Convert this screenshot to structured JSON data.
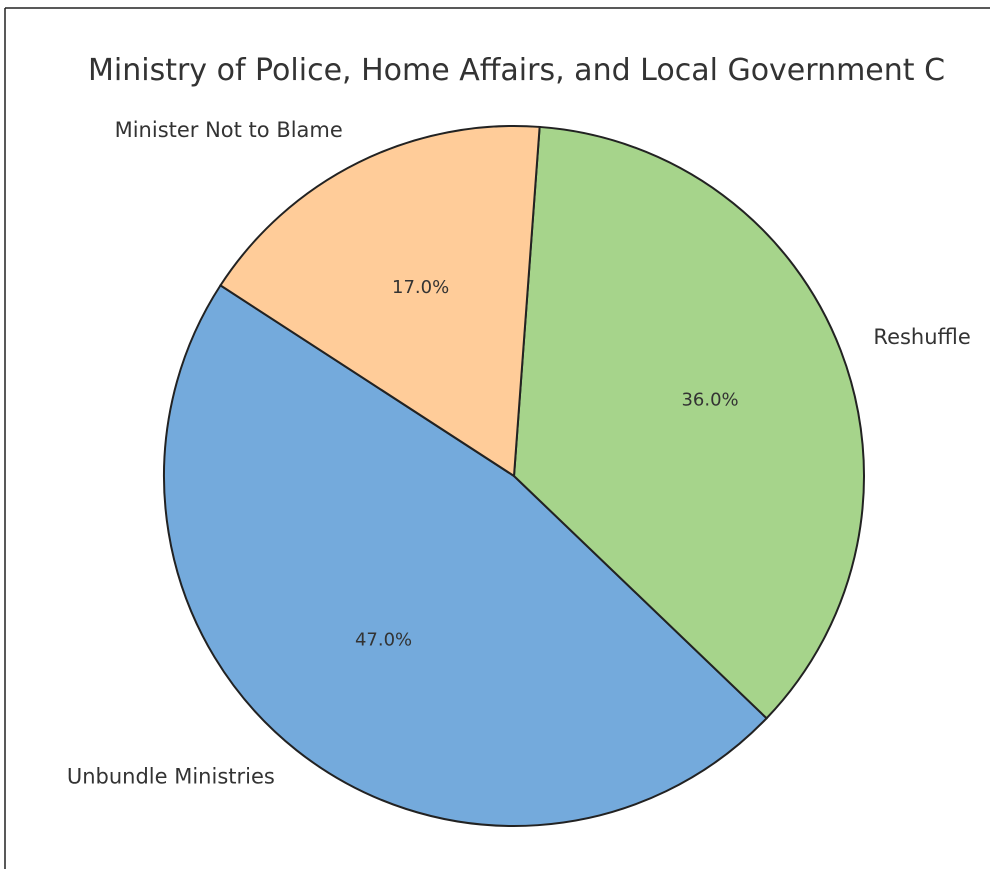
{
  "chart_data": {
    "type": "pie",
    "title": "Ministry of Police, Home Affairs, and Local Government C",
    "slices": [
      {
        "label": "Unbundle Ministries",
        "value": 47.0,
        "pct_label": "47.0%",
        "color": "#74aadc"
      },
      {
        "label": "Reshuffle",
        "value": 36.0,
        "pct_label": "36.0%",
        "color": "#a6d48b"
      },
      {
        "label": "Minister Not to Blame",
        "value": 17.0,
        "pct_label": "17.0%",
        "color": "#ffcc99"
      }
    ],
    "start_angle_deg": 147,
    "direction": "counterclockwise",
    "edge_color": "#222222"
  }
}
